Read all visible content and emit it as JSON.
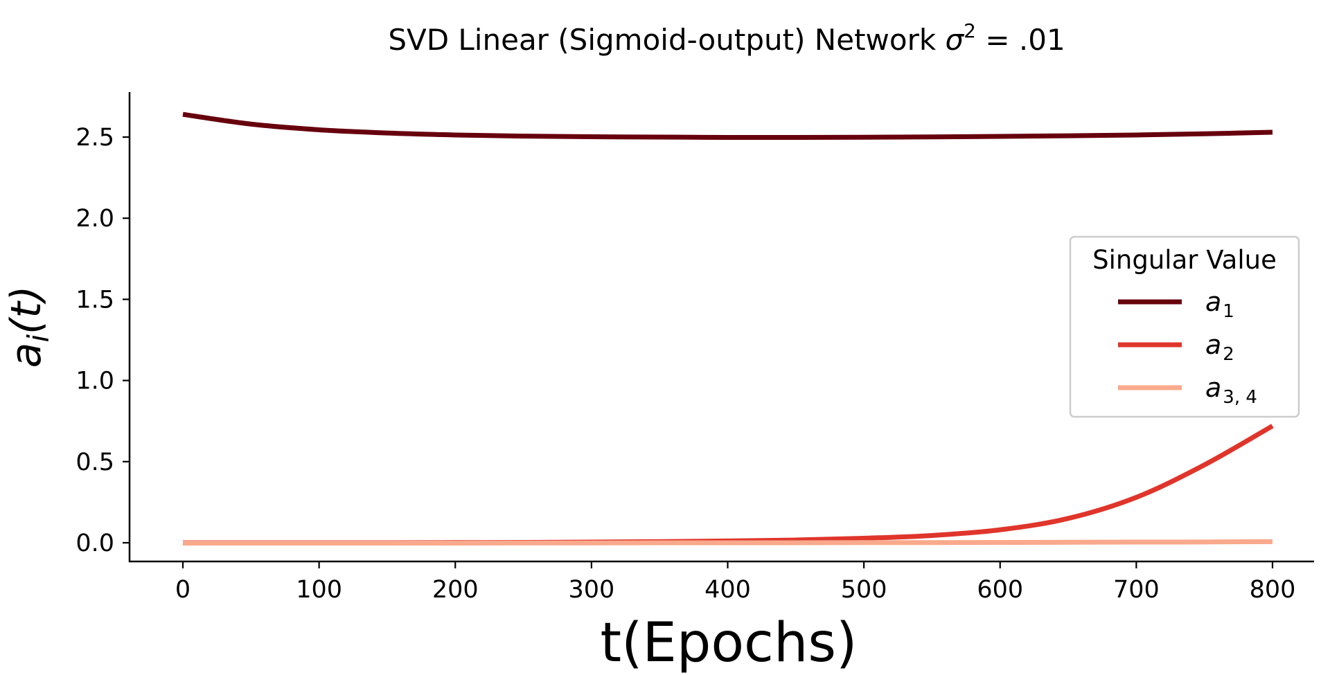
{
  "chart_data": {
    "type": "line",
    "title_main": "SVD Linear (Sigmoid-output) Network ",
    "title_sigma": "σ",
    "title_sup": "2",
    "title_tail": " = .01",
    "xlabel": "t(Epochs)",
    "ylabel_a": "a",
    "ylabel_i": "i",
    "ylabel_t": "(t)",
    "xlim": [
      -40,
      840
    ],
    "ylim": [
      -0.14,
      2.8
    ],
    "xticks": [
      0,
      100,
      200,
      300,
      400,
      500,
      600,
      700,
      800
    ],
    "xtick_labels": [
      "0",
      "100",
      "200",
      "300",
      "400",
      "500",
      "600",
      "700",
      "800"
    ],
    "yticks": [
      0.0,
      0.5,
      1.0,
      1.5,
      2.0,
      2.5
    ],
    "ytick_labels": [
      "0.0",
      "0.5",
      "1.0",
      "1.5",
      "2.0",
      "2.5"
    ],
    "grid": false,
    "legend": {
      "title": "Singular Value",
      "placement": "center-right"
    },
    "x": [
      0,
      50,
      100,
      150,
      200,
      250,
      300,
      350,
      400,
      450,
      500,
      550,
      600,
      650,
      700,
      750,
      800
    ],
    "series": [
      {
        "name": "a1",
        "label_main": "a",
        "label_sub": "1",
        "color": "#67000d",
        "values": [
          2.64,
          2.58,
          2.545,
          2.525,
          2.513,
          2.506,
          2.502,
          2.5,
          2.498,
          2.498,
          2.499,
          2.501,
          2.504,
          2.508,
          2.513,
          2.52,
          2.53
        ]
      },
      {
        "name": "a2",
        "label_main": "a",
        "label_sub": "2",
        "color": "#e0352b",
        "values": [
          0.0,
          0.0,
          0.0,
          0.0,
          0.001,
          0.002,
          0.004,
          0.007,
          0.011,
          0.017,
          0.028,
          0.045,
          0.08,
          0.15,
          0.28,
          0.48,
          0.72
        ]
      },
      {
        "name": "a3,4",
        "label_main": "a",
        "label_sub": "3, 4",
        "color": "#f9a98c",
        "values": [
          -0.002,
          -0.002,
          -0.002,
          -0.002,
          -0.002,
          -0.001,
          -0.001,
          0.0,
          0.0,
          0.0,
          0.001,
          0.001,
          0.002,
          0.003,
          0.004,
          0.005,
          0.007
        ]
      }
    ]
  }
}
